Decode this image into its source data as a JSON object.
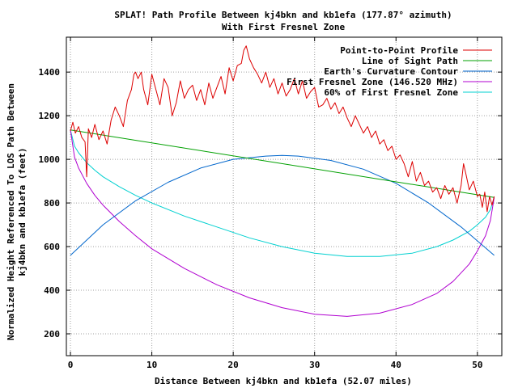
{
  "chart_data": {
    "type": "line",
    "title": "SPLAT! Path Profile Between kj4bkn and kb1efa (177.87° azimuth)",
    "subtitle": "With First Fresnel Zone",
    "xlabel": "Distance Between kj4bkn and kb1efa (52.07 miles)",
    "ylabel_line1": "Normalized Height Referenced To LOS Path Between",
    "ylabel_line2": "kj4bkn and kb1efa (feet)",
    "xlim": [
      -0.5,
      53
    ],
    "ylim": [
      100,
      1560
    ],
    "xticks": [
      0,
      10,
      20,
      30,
      40,
      50
    ],
    "yticks": [
      200,
      400,
      600,
      800,
      1000,
      1200,
      1400
    ],
    "grid": true,
    "legend_position": "top-right",
    "series": [
      {
        "name": "Point-to-Point Profile",
        "color": "#dd0000",
        "x": [
          0,
          0.3,
          0.6,
          1.0,
          1.4,
          1.8,
          2.0,
          2.2,
          2.6,
          3.0,
          3.5,
          4.0,
          4.5,
          5.0,
          5.5,
          6.0,
          6.5,
          7.0,
          7.5,
          7.8,
          8.0,
          8.3,
          8.7,
          9.0,
          9.5,
          10.0,
          10.5,
          11.0,
          11.5,
          12.0,
          12.5,
          13.0,
          13.5,
          14.0,
          14.5,
          15.0,
          15.5,
          16.0,
          16.5,
          17.0,
          17.5,
          18.0,
          18.5,
          19.0,
          19.5,
          20.0,
          20.5,
          21.0,
          21.3,
          21.6,
          22.0,
          22.5,
          23.0,
          23.5,
          24.0,
          24.5,
          25.0,
          25.5,
          26.0,
          26.5,
          27.0,
          27.5,
          28.0,
          28.5,
          29.0,
          29.5,
          30.0,
          30.5,
          31.0,
          31.5,
          32.0,
          32.5,
          33.0,
          33.5,
          34.0,
          34.5,
          35.0,
          35.5,
          36.0,
          36.5,
          37.0,
          37.5,
          38.0,
          38.5,
          39.0,
          39.5,
          40.0,
          40.5,
          41.0,
          41.5,
          42.0,
          42.5,
          43.0,
          43.5,
          44.0,
          44.5,
          45.0,
          45.5,
          46.0,
          46.5,
          47.0,
          47.5,
          48.0,
          48.3,
          48.6,
          49.0,
          49.5,
          50.0,
          50.3,
          50.6,
          50.9,
          51.2,
          51.5,
          51.8,
          52.07
        ],
        "y": [
          1130,
          1170,
          1120,
          1150,
          1100,
          1080,
          920,
          1140,
          1100,
          1160,
          1090,
          1130,
          1070,
          1180,
          1240,
          1200,
          1150,
          1270,
          1320,
          1390,
          1400,
          1370,
          1400,
          1320,
          1250,
          1390,
          1320,
          1250,
          1370,
          1330,
          1200,
          1260,
          1360,
          1280,
          1320,
          1340,
          1270,
          1320,
          1250,
          1350,
          1280,
          1330,
          1380,
          1300,
          1420,
          1360,
          1430,
          1440,
          1500,
          1520,
          1460,
          1420,
          1390,
          1350,
          1400,
          1330,
          1370,
          1300,
          1350,
          1290,
          1320,
          1370,
          1300,
          1360,
          1280,
          1310,
          1330,
          1240,
          1250,
          1280,
          1230,
          1260,
          1210,
          1240,
          1190,
          1150,
          1200,
          1160,
          1120,
          1150,
          1100,
          1130,
          1070,
          1090,
          1040,
          1060,
          1000,
          1020,
          980,
          920,
          990,
          900,
          940,
          880,
          900,
          850,
          870,
          820,
          880,
          840,
          870,
          800,
          880,
          980,
          930,
          860,
          900,
          830,
          840,
          780,
          850,
          760,
          830,
          790,
          830
        ]
      },
      {
        "name": "Line of Sight Path",
        "color": "#00a000",
        "x": [
          0,
          52.07
        ],
        "y": [
          1135,
          825
        ]
      },
      {
        "name": "Earth's Curvature Contour",
        "color": "#0066cc",
        "x": [
          0,
          4,
          8,
          12,
          16,
          20,
          24,
          26,
          28,
          32,
          36,
          40,
          44,
          48,
          52.07
        ],
        "y": [
          560,
          700,
          810,
          895,
          960,
          1000,
          1015,
          1018,
          1015,
          995,
          955,
          890,
          800,
          690,
          560
        ]
      },
      {
        "name": "First Fresnel Zone (146.520 MHz)",
        "color": "#b000d0",
        "x": [
          0,
          0.5,
          1,
          2,
          3,
          4,
          6,
          8,
          10,
          14,
          18,
          22,
          26,
          30,
          34,
          38,
          42,
          45,
          47,
          49,
          50,
          51,
          51.6,
          52.07
        ],
        "y": [
          1135,
          1010,
          960,
          890,
          835,
          790,
          715,
          650,
          590,
          500,
          425,
          365,
          320,
          290,
          280,
          295,
          335,
          385,
          440,
          520,
          580,
          650,
          720,
          825
        ]
      },
      {
        "name": "60% of First Fresnel Zone",
        "color": "#00d0d0",
        "x": [
          0,
          0.5,
          1,
          2,
          3,
          4,
          6,
          8,
          10,
          14,
          18,
          22,
          26,
          30,
          34,
          38,
          42,
          45,
          47,
          49,
          50,
          51,
          51.6,
          52.07
        ],
        "y": [
          1135,
          1060,
          1030,
          985,
          950,
          920,
          875,
          835,
          800,
          740,
          690,
          640,
          600,
          570,
          555,
          555,
          570,
          600,
          630,
          670,
          700,
          735,
          770,
          825
        ]
      }
    ]
  }
}
